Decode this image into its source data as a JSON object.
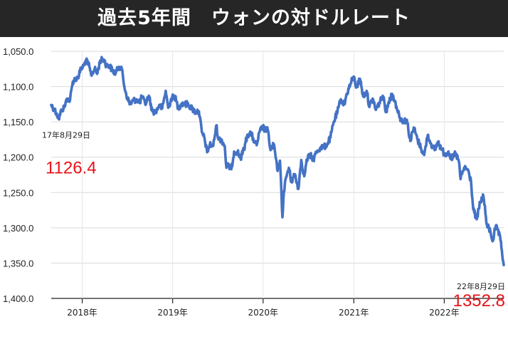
{
  "title": "過去5年間　ウォンの対ドルレート",
  "chart_data": {
    "type": "line",
    "title": "過去5年間　ウォンの対ドルレート",
    "xlabel": "",
    "ylabel": "",
    "y_inverted": true,
    "ylim": [
      1050,
      1400
    ],
    "y_ticks": [
      1050,
      1100,
      1150,
      1200,
      1250,
      1300,
      1350,
      1400
    ],
    "y_tick_labels": [
      "1,050.0",
      "1,100.0",
      "1,150.0",
      "1,200.0",
      "1,250.0",
      "1,300.0",
      "1,350.0",
      "1,400.0"
    ],
    "xlim": [
      "2017-08-29",
      "2022-08-29"
    ],
    "x_ticks": [
      "2018-01-01",
      "2019-01-01",
      "2020-01-01",
      "2021-01-01",
      "2022-01-01"
    ],
    "x_tick_labels": [
      "2018年",
      "2019年",
      "2020年",
      "2021年",
      "2022年"
    ],
    "grid": true,
    "line_color": "#4472c4",
    "series": [
      {
        "points": [
          [
            "2017-08-29",
            1126
          ],
          [
            "2017-09-08",
            1131
          ],
          [
            "2017-09-20",
            1138
          ],
          [
            "2017-09-28",
            1146
          ],
          [
            "2017-10-10",
            1133
          ],
          [
            "2017-10-20",
            1130
          ],
          [
            "2017-11-01",
            1117
          ],
          [
            "2017-11-13",
            1119
          ],
          [
            "2017-11-24",
            1093
          ],
          [
            "2017-12-05",
            1089
          ],
          [
            "2017-12-15",
            1087
          ],
          [
            "2017-12-27",
            1075
          ],
          [
            "2018-01-08",
            1070
          ],
          [
            "2018-01-15",
            1063
          ],
          [
            "2018-01-26",
            1068
          ],
          [
            "2018-02-06",
            1083
          ],
          [
            "2018-02-20",
            1075
          ],
          [
            "2018-03-02",
            1082
          ],
          [
            "2018-03-15",
            1063
          ],
          [
            "2018-03-30",
            1062
          ],
          [
            "2018-04-10",
            1071
          ],
          [
            "2018-04-20",
            1070
          ],
          [
            "2018-05-03",
            1077
          ],
          [
            "2018-05-16",
            1081
          ],
          [
            "2018-05-29",
            1072
          ],
          [
            "2018-06-08",
            1072
          ],
          [
            "2018-06-20",
            1100
          ],
          [
            "2018-07-02",
            1116
          ],
          [
            "2018-07-13",
            1125
          ],
          [
            "2018-07-26",
            1120
          ],
          [
            "2018-08-08",
            1118
          ],
          [
            "2018-08-20",
            1123
          ],
          [
            "2018-08-31",
            1114
          ],
          [
            "2018-09-12",
            1125
          ],
          [
            "2018-09-27",
            1113
          ],
          [
            "2018-10-11",
            1135
          ],
          [
            "2018-10-25",
            1136
          ],
          [
            "2018-11-08",
            1126
          ],
          [
            "2018-11-20",
            1131
          ],
          [
            "2018-12-04",
            1106
          ],
          [
            "2018-12-14",
            1130
          ],
          [
            "2018-12-27",
            1117
          ],
          [
            "2019-01-09",
            1113
          ],
          [
            "2019-01-23",
            1130
          ],
          [
            "2019-02-07",
            1124
          ],
          [
            "2019-02-20",
            1125
          ],
          [
            "2019-03-05",
            1125
          ],
          [
            "2019-03-20",
            1131
          ],
          [
            "2019-04-03",
            1136
          ],
          [
            "2019-04-17",
            1135
          ],
          [
            "2019-04-29",
            1165
          ],
          [
            "2019-05-10",
            1174
          ],
          [
            "2019-05-20",
            1193
          ],
          [
            "2019-05-31",
            1182
          ],
          [
            "2019-06-14",
            1184
          ],
          [
            "2019-06-26",
            1155
          ],
          [
            "2019-07-05",
            1175
          ],
          [
            "2019-07-17",
            1175
          ],
          [
            "2019-07-30",
            1184
          ],
          [
            "2019-08-06",
            1215
          ],
          [
            "2019-08-14",
            1212
          ],
          [
            "2019-08-26",
            1217
          ],
          [
            "2019-09-06",
            1192
          ],
          [
            "2019-09-20",
            1192
          ],
          [
            "2019-10-02",
            1202
          ],
          [
            "2019-10-16",
            1188
          ],
          [
            "2019-10-30",
            1168
          ],
          [
            "2019-11-12",
            1166
          ],
          [
            "2019-11-26",
            1177
          ],
          [
            "2019-12-06",
            1183
          ],
          [
            "2019-12-18",
            1164
          ],
          [
            "2019-12-31",
            1157
          ],
          [
            "2020-01-10",
            1162
          ],
          [
            "2020-01-20",
            1162
          ],
          [
            "2020-01-31",
            1190
          ],
          [
            "2020-02-14",
            1182
          ],
          [
            "2020-02-27",
            1218
          ],
          [
            "2020-03-09",
            1205
          ],
          [
            "2020-03-19",
            1285
          ],
          [
            "2020-03-25",
            1248
          ],
          [
            "2020-04-03",
            1228
          ],
          [
            "2020-04-14",
            1215
          ],
          [
            "2020-04-24",
            1235
          ],
          [
            "2020-05-08",
            1224
          ],
          [
            "2020-05-22",
            1245
          ],
          [
            "2020-06-03",
            1204
          ],
          [
            "2020-06-15",
            1227
          ],
          [
            "2020-06-26",
            1203
          ],
          [
            "2020-07-08",
            1197
          ],
          [
            "2020-07-22",
            1203
          ],
          [
            "2020-08-04",
            1192
          ],
          [
            "2020-08-18",
            1187
          ],
          [
            "2020-09-01",
            1186
          ],
          [
            "2020-09-15",
            1182
          ],
          [
            "2020-09-29",
            1172
          ],
          [
            "2020-10-12",
            1150
          ],
          [
            "2020-10-27",
            1136
          ],
          [
            "2020-11-10",
            1118
          ],
          [
            "2020-11-24",
            1125
          ],
          [
            "2020-12-04",
            1110
          ],
          [
            "2020-12-18",
            1097
          ],
          [
            "2020-12-31",
            1086
          ],
          [
            "2021-01-12",
            1101
          ],
          [
            "2021-01-26",
            1089
          ],
          [
            "2021-02-08",
            1114
          ],
          [
            "2021-02-22",
            1106
          ],
          [
            "2021-03-05",
            1129
          ],
          [
            "2021-03-18",
            1117
          ],
          [
            "2021-03-31",
            1133
          ],
          [
            "2021-04-14",
            1123
          ],
          [
            "2021-04-28",
            1113
          ],
          [
            "2021-05-12",
            1136
          ],
          [
            "2021-05-26",
            1116
          ],
          [
            "2021-06-09",
            1113
          ],
          [
            "2021-06-22",
            1128
          ],
          [
            "2021-07-06",
            1144
          ],
          [
            "2021-07-20",
            1149
          ],
          [
            "2021-08-03",
            1147
          ],
          [
            "2021-08-17",
            1177
          ],
          [
            "2021-08-31",
            1158
          ],
          [
            "2021-09-14",
            1174
          ],
          [
            "2021-09-28",
            1186
          ],
          [
            "2021-10-12",
            1197
          ],
          [
            "2021-10-26",
            1169
          ],
          [
            "2021-11-09",
            1181
          ],
          [
            "2021-11-23",
            1190
          ],
          [
            "2021-12-07",
            1178
          ],
          [
            "2021-12-21",
            1189
          ],
          [
            "2022-01-04",
            1196
          ],
          [
            "2022-01-18",
            1192
          ],
          [
            "2022-02-01",
            1204
          ],
          [
            "2022-02-15",
            1194
          ],
          [
            "2022-03-01",
            1206
          ],
          [
            "2022-03-08",
            1231
          ],
          [
            "2022-03-22",
            1215
          ],
          [
            "2022-04-05",
            1217
          ],
          [
            "2022-04-19",
            1234
          ],
          [
            "2022-04-28",
            1274
          ],
          [
            "2022-05-12",
            1288
          ],
          [
            "2022-05-26",
            1264
          ],
          [
            "2022-06-08",
            1255
          ],
          [
            "2022-06-22",
            1296
          ],
          [
            "2022-07-06",
            1305
          ],
          [
            "2022-07-15",
            1319
          ],
          [
            "2022-07-27",
            1299
          ],
          [
            "2022-08-05",
            1303
          ],
          [
            "2022-08-16",
            1318
          ],
          [
            "2022-08-29",
            1352.8
          ]
        ]
      }
    ],
    "annotations": [
      {
        "date_label": "17年8月29日",
        "value_label": "1126.4",
        "anchor": "left"
      },
      {
        "date_label": "22年8月29日",
        "value_label": "1352.8",
        "anchor": "right"
      }
    ]
  }
}
